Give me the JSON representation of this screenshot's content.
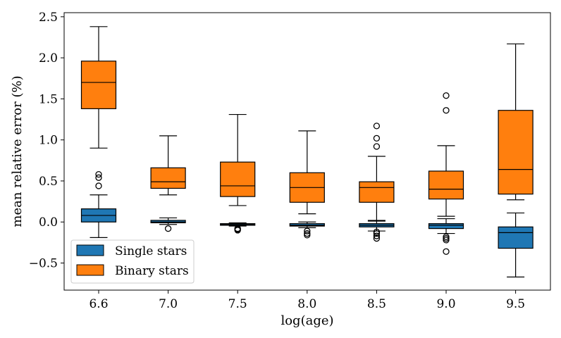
{
  "chart_data": {
    "type": "boxplot",
    "title": "",
    "xlabel": "log(age)",
    "ylabel": "mean relative error (%)",
    "categories": [
      "6.6",
      "7.0",
      "7.5",
      "8.0",
      "8.5",
      "9.0",
      "9.5"
    ],
    "ylim": [
      -0.83,
      2.55
    ],
    "yticks": [
      -0.5,
      0.0,
      0.5,
      1.0,
      1.5,
      2.0,
      2.5
    ],
    "ytick_labels": [
      "−0.5",
      "0.0",
      "0.5",
      "1.0",
      "1.5",
      "2.0",
      "2.5"
    ],
    "legend_position": "lower-left",
    "series": [
      {
        "name": "Single stars",
        "color": "#1f77b4",
        "boxes": [
          {
            "whislo": -0.19,
            "q1": 0.0,
            "med": 0.08,
            "q3": 0.16,
            "whishi": 0.33,
            "fliers": [
              0.44,
              0.54,
              0.58
            ]
          },
          {
            "whislo": -0.03,
            "q1": -0.01,
            "med": 0.0,
            "q3": 0.02,
            "whishi": 0.05,
            "fliers": [
              -0.08
            ]
          },
          {
            "whislo": -0.05,
            "q1": -0.04,
            "med": -0.03,
            "q3": -0.02,
            "whishi": -0.01,
            "fliers": [
              -0.08,
              -0.09,
              -0.1
            ]
          },
          {
            "whislo": -0.07,
            "q1": -0.05,
            "med": -0.04,
            "q3": -0.02,
            "whishi": 0.0,
            "fliers": [
              -0.11,
              -0.14,
              -0.16
            ]
          },
          {
            "whislo": -0.11,
            "q1": -0.06,
            "med": -0.04,
            "q3": -0.02,
            "whishi": 0.02,
            "fliers": [
              -0.12,
              -0.14,
              -0.17,
              -0.2
            ]
          },
          {
            "whislo": -0.14,
            "q1": -0.08,
            "med": -0.04,
            "q3": -0.02,
            "whishi": 0.04,
            "fliers": [
              -0.18,
              -0.2,
              -0.22,
              -0.36
            ]
          },
          {
            "whislo": -0.67,
            "q1": -0.32,
            "med": -0.13,
            "q3": -0.06,
            "whishi": 0.11,
            "fliers": []
          }
        ]
      },
      {
        "name": "Binary stars",
        "color": "#ff7f0e",
        "boxes": [
          {
            "whislo": 0.9,
            "q1": 1.38,
            "med": 1.7,
            "q3": 1.96,
            "whishi": 2.38,
            "fliers": []
          },
          {
            "whislo": 0.33,
            "q1": 0.41,
            "med": 0.49,
            "q3": 0.66,
            "whishi": 1.05,
            "fliers": []
          },
          {
            "whislo": 0.2,
            "q1": 0.31,
            "med": 0.44,
            "q3": 0.73,
            "whishi": 1.31,
            "fliers": []
          },
          {
            "whislo": 0.1,
            "q1": 0.24,
            "med": 0.42,
            "q3": 0.6,
            "whishi": 1.11,
            "fliers": []
          },
          {
            "whislo": 0.01,
            "q1": 0.24,
            "med": 0.42,
            "q3": 0.49,
            "whishi": 0.8,
            "fliers": [
              0.92,
              1.02,
              1.17
            ]
          },
          {
            "whislo": 0.07,
            "q1": 0.28,
            "med": 0.4,
            "q3": 0.62,
            "whishi": 0.93,
            "fliers": [
              1.36,
              1.54
            ]
          },
          {
            "whislo": 0.27,
            "q1": 0.34,
            "med": 0.64,
            "q3": 1.36,
            "whishi": 2.17,
            "fliers": []
          }
        ]
      }
    ]
  }
}
